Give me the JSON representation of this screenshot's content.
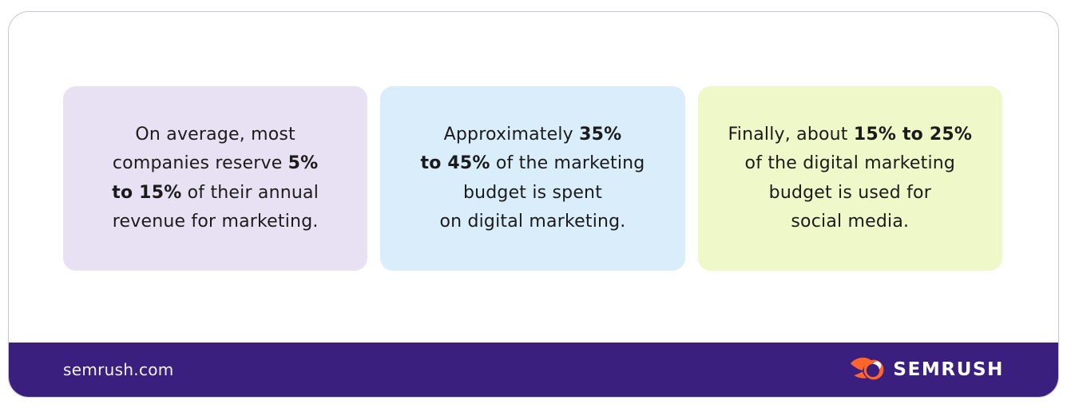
{
  "cards": [
    {
      "id": "revenue-share",
      "bg": "#E8E1F3",
      "segments": [
        {
          "text": "On average, most\ncompanies reserve ",
          "bold": false
        },
        {
          "text": "5%\nto 15%",
          "bold": true
        },
        {
          "text": " of their annual\nrevenue for marketing.",
          "bold": false
        }
      ]
    },
    {
      "id": "digital-share",
      "bg": "#D9EDFA",
      "segments": [
        {
          "text": "Approximately ",
          "bold": false
        },
        {
          "text": "35%\nto 45%",
          "bold": true
        },
        {
          "text": " of the marketing\nbudget is spent\non digital marketing.",
          "bold": false
        }
      ]
    },
    {
      "id": "social-share",
      "bg": "#EFF8C8",
      "segments": [
        {
          "text": "Finally, about ",
          "bold": false
        },
        {
          "text": "15% to 25%",
          "bold": true
        },
        {
          "text": "\nof the digital marketing\nbudget is used for\nsocial media.",
          "bold": false
        }
      ]
    }
  ],
  "footer": {
    "site": "semrush.com",
    "brand": "SEMRUSH",
    "bg": "#3B1F7E",
    "logo_orange": "#FF642D"
  },
  "colors": {
    "card_border": "#C7C8D2",
    "text": "#1B1B1B",
    "page_bg": "#FFFFFF"
  }
}
